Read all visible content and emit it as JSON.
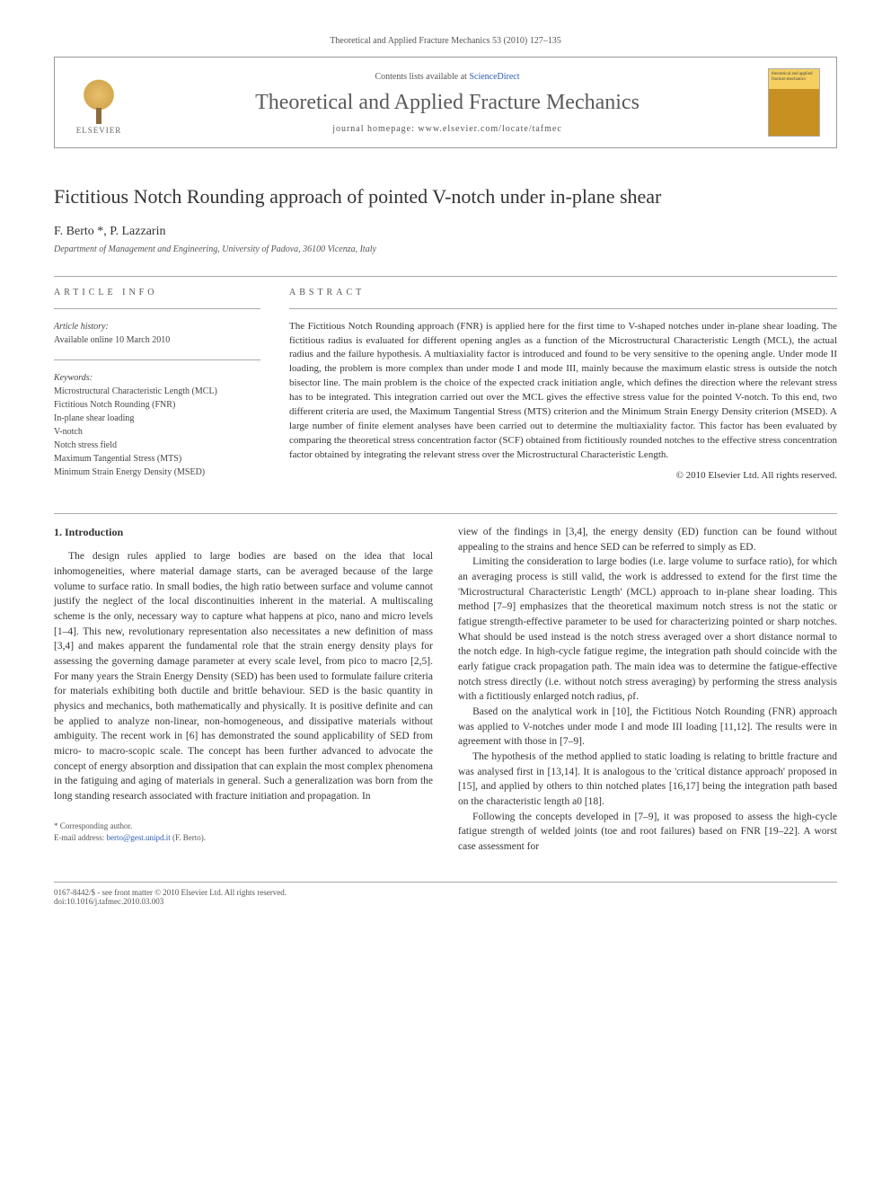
{
  "header": {
    "citation": "Theoretical and Applied Fracture Mechanics 53 (2010) 127–135",
    "contents_prefix": "Contents lists available at ",
    "contents_link": "ScienceDirect",
    "journal_title": "Theoretical and Applied Fracture Mechanics",
    "homepage_prefix": "journal homepage: ",
    "homepage_url": "www.elsevier.com/locate/tafmec",
    "publisher": "ELSEVIER",
    "cover_text": "theoretical and applied fracture mechanics"
  },
  "article": {
    "title": "Fictitious Notch Rounding approach of pointed V-notch under in-plane shear",
    "authors": "F. Berto *, P. Lazzarin",
    "affiliation": "Department of Management and Engineering, University of Padova, 36100 Vicenza, Italy"
  },
  "info": {
    "section_label": "ARTICLE INFO",
    "history_label": "Article history:",
    "history_value": "Available online 10 March 2010",
    "keywords_label": "Keywords:",
    "keywords": [
      "Microstructural Characteristic Length (MCL)",
      "Fictitious Notch Rounding (FNR)",
      "In-plane shear loading",
      "V-notch",
      "Notch stress field",
      "Maximum Tangential Stress (MTS)",
      "Minimum Strain Energy Density (MSED)"
    ]
  },
  "abstract": {
    "section_label": "ABSTRACT",
    "text": "The Fictitious Notch Rounding approach (FNR) is applied here for the first time to V-shaped notches under in-plane shear loading. The fictitious radius is evaluated for different opening angles as a function of the Microstructural Characteristic Length (MCL), the actual radius and the failure hypothesis. A multiaxiality factor is introduced and found to be very sensitive to the opening angle. Under mode II loading, the problem is more complex than under mode I and mode III, mainly because the maximum elastic stress is outside the notch bisector line. The main problem is the choice of the expected crack initiation angle, which defines the direction where the relevant stress has to be integrated. This integration carried out over the MCL gives the effective stress value for the pointed V-notch. To this end, two different criteria are used, the Maximum Tangential Stress (MTS) criterion and the Minimum Strain Energy Density criterion (MSED). A large number of finite element analyses have been carried out to determine the multiaxiality factor. This factor has been evaluated by comparing the theoretical stress concentration factor (SCF) obtained from fictitiously rounded notches to the effective stress concentration factor obtained by integrating the relevant stress over the Microstructural Characteristic Length.",
    "copyright": "© 2010 Elsevier Ltd. All rights reserved."
  },
  "body": {
    "heading": "1. Introduction",
    "col1_p1": "The design rules applied to large bodies are based on the idea that local inhomogeneities, where material damage starts, can be averaged because of the large volume to surface ratio. In small bodies, the high ratio between surface and volume cannot justify the neglect of the local discontinuities inherent in the material. A multiscaling scheme is the only, necessary way to capture what happens at pico, nano and micro levels [1–4]. This new, revolutionary representation also necessitates a new definition of mass [3,4] and makes apparent the fundamental role that the strain energy density plays for assessing the governing damage parameter at every scale level, from pico to macro [2,5]. For many years the Strain Energy Density (SED) has been used to formulate failure criteria for materials exhibiting both ductile and brittle behaviour. SED is the basic quantity in physics and mechanics, both mathematically and physically. It is positive definite and can be applied to analyze non-linear, non-homogeneous, and dissipative materials without ambiguity. The recent work in [6] has demonstrated the sound applicability of SED from micro- to macro-scopic scale. The concept has been further advanced to advocate the concept of energy absorption and dissipation that can explain the most complex phenomena in the fatiguing and aging of materials in general. Such a generalization was born from the long standing research associated with fracture initiation and propagation. In",
    "col2_p1": "view of the findings in [3,4], the energy density (ED) function can be found without appealing to the strains and hence SED can be referred to simply as ED.",
    "col2_p2": "Limiting the consideration to large bodies (i.e. large volume to surface ratio), for which an averaging process is still valid, the work is addressed to extend for the first time the 'Microstructural Characteristic Length' (MCL) approach to in-plane shear loading. This method [7–9] emphasizes that the theoretical maximum notch stress is not the static or fatigue strength-effective parameter to be used for characterizing pointed or sharp notches. What should be used instead is the notch stress averaged over a short distance normal to the notch edge. In high-cycle fatigue regime, the integration path should coincide with the early fatigue crack propagation path. The main idea was to determine the fatigue-effective notch stress directly (i.e. without notch stress averaging) by performing the stress analysis with a fictitiously enlarged notch radius, ρf.",
    "col2_p3": "Based on the analytical work in [10], the Fictitious Notch Rounding (FNR) approach was applied to V-notches under mode I and mode III loading [11,12]. The results were in agreement with those in [7–9].",
    "col2_p4": "The hypothesis of the method applied to static loading is relating to brittle fracture and was analysed first in [13,14]. It is analogous to the 'critical distance approach' proposed in [15], and applied by others to thin notched plates [16,17] being the integration path based on the characteristic length a0 [18].",
    "col2_p5": "Following the concepts developed in [7–9], it was proposed to assess the high-cycle fatigue strength of welded joints (toe and root failures) based on FNR [19–22]. A worst case assessment for"
  },
  "footer": {
    "corr_label": "* Corresponding author.",
    "email_label": "E-mail address: ",
    "email": "berto@gest.unipd.it",
    "email_author": " (F. Berto).",
    "issn": "0167-8442/$ - see front matter © 2010 Elsevier Ltd. All rights reserved.",
    "doi": "doi:10.1016/j.tafmec.2010.03.003"
  },
  "refs": {
    "r1_4": "[1–4]",
    "r3_4": "[3,4]",
    "r2_5": "[2,5]",
    "r6": "[6]",
    "r7_9": "[7–9]",
    "r10": "[10]",
    "r11_12": "[11,12]",
    "r13_14": "[13,14]",
    "r15": "[15]",
    "r16_17": "[16,17]",
    "r18": "[18]",
    "r19_22": "[19–22]"
  }
}
